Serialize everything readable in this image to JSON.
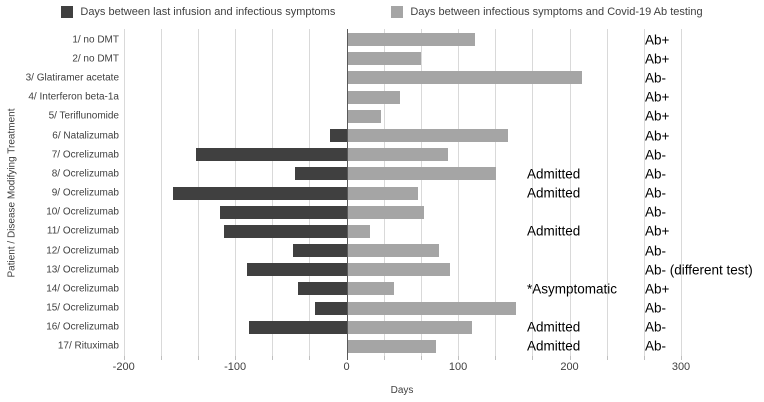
{
  "chart_data": {
    "type": "bar",
    "orientation": "horizontal-diverging",
    "title": "",
    "xlabel": "Days",
    "ylabel": "Patient / Disease Modifying Treatment",
    "xlim": [
      -200,
      300
    ],
    "x_ticks": [
      -200,
      -100,
      0,
      100,
      200,
      300
    ],
    "grid_minor_interval_days": 33.33,
    "grid": "minor-vertical-on",
    "legend_position": "top",
    "categories": [
      "1/ no DMT",
      "2/ no DMT",
      "3/ Glatiramer acetate",
      "4/ Interferon beta-1a",
      "5/ Teriflunomide",
      "6/ Natalizumab",
      "7/ Ocrelizumab",
      "8/ Ocrelizumab",
      "9/ Ocrelizumab",
      "10/ Ocrelizumab",
      "11/ Ocrelizumab",
      "12/ Ocrelizumab",
      "13/ Ocrelizumab",
      "14/ Ocrelizumab",
      "15/ Ocrelizumab",
      "16/ Ocrelizumab",
      "17/ Rituximab"
    ],
    "series": [
      {
        "name": "Days between last infusion and infectious symptoms",
        "color": "#404040",
        "values": [
          null,
          null,
          null,
          null,
          null,
          -15,
          -135,
          -46,
          -156,
          -114,
          -110,
          -48,
          -89,
          -44,
          -28,
          -88,
          null
        ]
      },
      {
        "name": "Days between infectious symptoms and Covid-19 Ab testing",
        "color": "#a5a5a5",
        "values": [
          114,
          66,
          210,
          47,
          30,
          144,
          90,
          133,
          63,
          69,
          20,
          82,
          92,
          42,
          151,
          112,
          79
        ]
      }
    ],
    "row_annotations": [
      "",
      "",
      "",
      "",
      "",
      "",
      "",
      "Admitted",
      "Admitted",
      "",
      "Admitted",
      "",
      "",
      "*Asymptomatic",
      "",
      "Admitted",
      "Admitted"
    ],
    "ab_status": [
      "Ab+",
      "Ab+",
      "Ab-",
      "Ab+",
      "Ab+",
      "Ab+",
      "Ab-",
      "Ab-",
      "Ab-",
      "Ab-",
      "Ab+",
      "Ab-",
      "Ab- (different test)",
      "Ab+",
      "Ab-",
      "Ab-",
      "Ab-"
    ]
  }
}
